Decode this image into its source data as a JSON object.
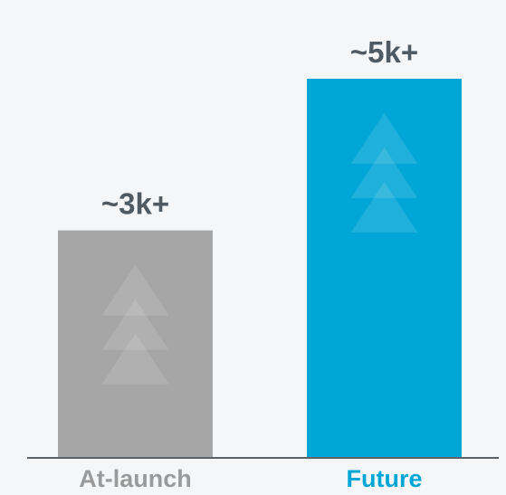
{
  "chart_data": {
    "type": "bar",
    "categories": [
      "At-launch",
      "Future"
    ],
    "values": [
      3,
      5
    ],
    "value_labels": [
      "~3k+",
      "~5k+"
    ],
    "value_unit": "thousand",
    "colors": [
      "#a6a6a6",
      "#00a6d6"
    ],
    "category_label_colors": [
      "#9a9a9a",
      "#00a6d6"
    ],
    "axis_line_color": "#5a6168",
    "grid": false,
    "legend": "none",
    "decoration": "stacked-up-arrows-icon",
    "title": "",
    "xlabel": "",
    "ylabel": ""
  }
}
